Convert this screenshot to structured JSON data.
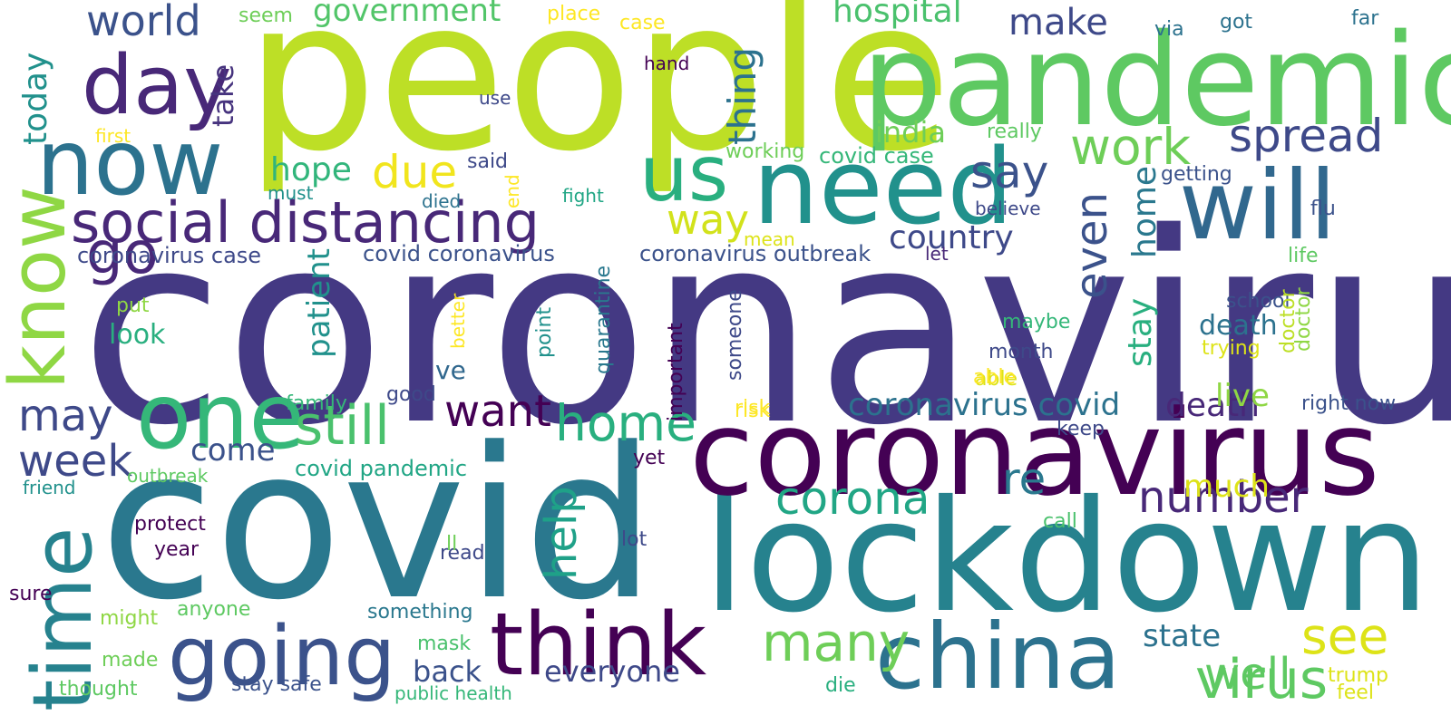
{
  "words": [
    {
      "text": "coronaviru",
      "color": "#443983"
    },
    {
      "text": "people",
      "color": "#bddf26"
    },
    {
      "text": "covid",
      "color": "#2a788e"
    },
    {
      "text": "lockdown",
      "color": "#26828e"
    },
    {
      "text": "pandemic",
      "color": "#5ec962"
    },
    {
      "text": "corona",
      "color": "#440154"
    },
    {
      "text": "virus",
      "color": "#440154"
    },
    {
      "text": "need",
      "color": "#21918c"
    },
    {
      "text": "will",
      "color": "#31688e"
    },
    {
      "text": "china",
      "color": "#2c728e"
    },
    {
      "text": "think",
      "color": "#440154"
    },
    {
      "text": "going",
      "color": "#3b528b"
    },
    {
      "text": "now",
      "color": "#2c728e"
    },
    {
      "text": "one",
      "color": "#35b779"
    },
    {
      "text": "us",
      "color": "#29af7f"
    },
    {
      "text": "day",
      "color": "#482878"
    },
    {
      "text": "know",
      "color": "#8fd744"
    },
    {
      "text": "time",
      "color": "#26828e"
    },
    {
      "text": "social distancing",
      "color": "#482878"
    },
    {
      "text": "virus",
      "color": "#5ec962"
    },
    {
      "text": "still",
      "color": "#4ac16d"
    },
    {
      "text": "home",
      "color": "#29af7f"
    },
    {
      "text": "corona",
      "color": "#21a685"
    },
    {
      "text": "number",
      "color": "#482878"
    },
    {
      "text": "many",
      "color": "#6ece58"
    },
    {
      "text": "see",
      "color": "#dde318"
    },
    {
      "text": "work",
      "color": "#6ece58"
    },
    {
      "text": "spread",
      "color": "#3e4989"
    },
    {
      "text": "say",
      "color": "#3b528b"
    },
    {
      "text": "may",
      "color": "#3e4989"
    },
    {
      "text": "want",
      "color": "#440154"
    },
    {
      "text": "re",
      "color": "#2a788e"
    },
    {
      "text": "even",
      "color": "#3b528b"
    },
    {
      "text": "help",
      "color": "#1fa188"
    },
    {
      "text": "week",
      "color": "#3e4989"
    },
    {
      "text": "way",
      "color": "#d2e21b"
    },
    {
      "text": "due",
      "color": "#f1e51d"
    },
    {
      "text": "death",
      "color": "#482878"
    },
    {
      "text": "stay",
      "color": "#29af7f"
    },
    {
      "text": "home",
      "color": "#2a788e"
    },
    {
      "text": "coronavirus covid",
      "color": "#2c728e"
    },
    {
      "text": "country",
      "color": "#3e4989"
    },
    {
      "text": "go",
      "color": "#21918c"
    },
    {
      "text": "world",
      "color": "#3b528b"
    },
    {
      "text": "today",
      "color": "#21918c"
    },
    {
      "text": "hospital",
      "color": "#4ac16d"
    },
    {
      "text": "government",
      "color": "#52c569"
    },
    {
      "text": "make",
      "color": "#3e4989"
    },
    {
      "text": "thing",
      "color": "#2c728e"
    },
    {
      "text": "take",
      "color": "#46337e"
    },
    {
      "text": "hope",
      "color": "#31b57b"
    },
    {
      "text": "india",
      "color": "#6ece58"
    },
    {
      "text": "live",
      "color": "#8fd744"
    },
    {
      "text": "much",
      "color": "#dde318"
    },
    {
      "text": "state",
      "color": "#2c728e"
    },
    {
      "text": "well",
      "color": "#5ec962"
    },
    {
      "text": "come",
      "color": "#3b528b"
    },
    {
      "text": "everyone",
      "color": "#3e4989"
    },
    {
      "text": "back",
      "color": "#3b528b"
    },
    {
      "text": "death",
      "color": "#2c728e"
    },
    {
      "text": "look",
      "color": "#29af7f"
    },
    {
      "text": "ve",
      "color": "#31688e"
    },
    {
      "text": "patient",
      "color": "#21918c"
    },
    {
      "text": "covid coronavirus",
      "color": "#3b528b"
    },
    {
      "text": "coronavirus outbreak",
      "color": "#3b528b"
    },
    {
      "text": "coronavirus case",
      "color": "#3e4989"
    },
    {
      "text": "covid pandemic",
      "color": "#21a685"
    },
    {
      "text": "covid case",
      "color": "#35b779"
    },
    {
      "text": "really",
      "color": "#5ec962"
    },
    {
      "text": "working",
      "color": "#6ece58"
    },
    {
      "text": "getting",
      "color": "#3b528b"
    },
    {
      "text": "believe",
      "color": "#3e4989"
    },
    {
      "text": "flu",
      "color": "#3b528b"
    },
    {
      "text": "life",
      "color": "#5ec962"
    },
    {
      "text": "school",
      "color": "#3b528b"
    },
    {
      "text": "maybe",
      "color": "#35b779"
    },
    {
      "text": "month",
      "color": "#3e4989"
    },
    {
      "text": "trying",
      "color": "#dde318"
    },
    {
      "text": "able",
      "color": "#dde318"
    },
    {
      "text": "keep",
      "color": "#3e4989"
    },
    {
      "text": "right now",
      "color": "#3b528b"
    },
    {
      "text": "call",
      "color": "#4ac16d"
    },
    {
      "text": "trump",
      "color": "#dde318"
    },
    {
      "text": "feel",
      "color": "#dde318"
    },
    {
      "text": "doctor",
      "color": "#bddf26"
    },
    {
      "text": "via",
      "color": "#2c728e"
    },
    {
      "text": "got",
      "color": "#2c728e"
    },
    {
      "text": "far",
      "color": "#2c728e"
    },
    {
      "text": "let",
      "color": "#482878"
    },
    {
      "text": "mean",
      "color": "#dde318"
    },
    {
      "text": "risk",
      "color": "#fde725"
    },
    {
      "text": "something",
      "color": "#2a788e"
    },
    {
      "text": "stay safe",
      "color": "#3b528b"
    },
    {
      "text": "public health",
      "color": "#35b779"
    },
    {
      "text": "thought",
      "color": "#5ec962"
    },
    {
      "text": "mask",
      "color": "#4ac16d"
    },
    {
      "text": "die",
      "color": "#29af7f"
    },
    {
      "text": "anyone",
      "color": "#5ec962"
    },
    {
      "text": "might",
      "color": "#8fd744"
    },
    {
      "text": "made",
      "color": "#6ece58"
    },
    {
      "text": "sure",
      "color": "#440154"
    },
    {
      "text": "protect",
      "color": "#440154"
    },
    {
      "text": "year",
      "color": "#440154"
    },
    {
      "text": "outbreak",
      "color": "#5ec962"
    },
    {
      "text": "friend",
      "color": "#21918c"
    },
    {
      "text": "lot",
      "color": "#3e4989"
    },
    {
      "text": "read",
      "color": "#3e4989"
    },
    {
      "text": "ll",
      "color": "#6ece58"
    },
    {
      "text": "yet",
      "color": "#440154"
    },
    {
      "text": "family",
      "color": "#35b779"
    },
    {
      "text": "good",
      "color": "#3e4989"
    },
    {
      "text": "put",
      "color": "#8fd744"
    },
    {
      "text": "risk",
      "color": "#fde725"
    },
    {
      "text": "said",
      "color": "#3e4989"
    },
    {
      "text": "died",
      "color": "#2c728e"
    },
    {
      "text": "must",
      "color": "#21918c"
    },
    {
      "text": "fight",
      "color": "#21a685"
    },
    {
      "text": "end",
      "color": "#fde725"
    },
    {
      "text": "use",
      "color": "#3e4989"
    },
    {
      "text": "hand",
      "color": "#440154"
    },
    {
      "text": "case",
      "color": "#fde725"
    },
    {
      "text": "place",
      "color": "#fde725"
    },
    {
      "text": "seem",
      "color": "#6ece58"
    },
    {
      "text": "first",
      "color": "#fde725"
    },
    {
      "text": "quarantine",
      "color": "#2a788e"
    },
    {
      "text": "point",
      "color": "#21918c"
    },
    {
      "text": "important",
      "color": "#440154"
    },
    {
      "text": "someone",
      "color": "#3e4989"
    },
    {
      "text": "better",
      "color": "#fde725"
    },
    {
      "text": "doctor",
      "color": "#8fd744"
    },
    {
      "text": "able",
      "color": "#fde725"
    }
  ]
}
